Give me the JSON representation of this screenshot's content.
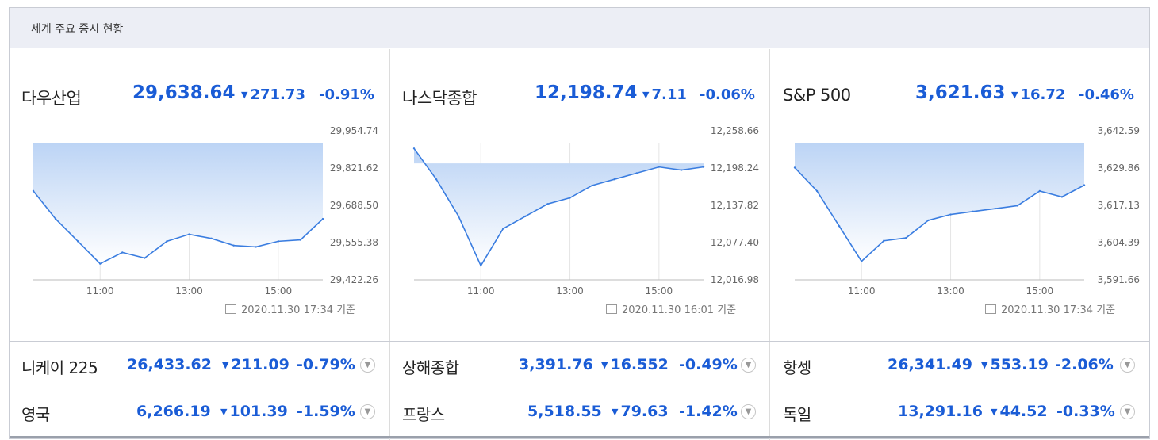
{
  "header": {
    "title": "세계 주요 증시 현황"
  },
  "panels": [
    {
      "name": "다우산업",
      "value": "29,638.64",
      "change": "271.73",
      "percent": "-0.91%",
      "yticks": [
        "29,954.74",
        "29,821.62",
        "29,688.50",
        "29,555.38",
        "29,422.26"
      ],
      "xticks": [
        "11:00",
        "13:00",
        "15:00"
      ],
      "timestamp": "2020.11.30 17:34 기준"
    },
    {
      "name": "나스닥종합",
      "value": "12,198.74",
      "change": "7.11",
      "percent": "-0.06%",
      "yticks": [
        "12,258.66",
        "12,198.24",
        "12,137.82",
        "12,077.40",
        "12,016.98"
      ],
      "xticks": [
        "11:00",
        "13:00",
        "15:00"
      ],
      "timestamp": "2020.11.30 16:01 기준"
    },
    {
      "name": "S&P 500",
      "value": "3,621.63",
      "change": "16.72",
      "percent": "-0.46%",
      "yticks": [
        "3,642.59",
        "3,629.86",
        "3,617.13",
        "3,604.39",
        "3,591.66"
      ],
      "xticks": [
        "11:00",
        "13:00",
        "15:00"
      ],
      "timestamp": "2020.11.30 17:34 기준"
    }
  ],
  "rows": [
    [
      {
        "name": "니케이 225",
        "value": "26,433.62",
        "change": "211.09",
        "percent": "-0.79%"
      },
      {
        "name": "상해종합",
        "value": "3,391.76",
        "change": "16.552",
        "percent": "-0.49%"
      },
      {
        "name": "항셍",
        "value": "26,341.49",
        "change": "553.19",
        "percent": "-2.06%"
      }
    ],
    [
      {
        "name": "영국",
        "value": "6,266.19",
        "change": "101.39",
        "percent": "-1.59%"
      },
      {
        "name": "프랑스",
        "value": "5,518.55",
        "change": "79.63",
        "percent": "-1.42%"
      },
      {
        "name": "독일",
        "value": "13,291.16",
        "change": "44.52",
        "percent": "-0.33%"
      }
    ]
  ],
  "colors": {
    "accent": "#1a5cd6",
    "line": "#3a7de0",
    "up_line": "#e8212d",
    "fill_top": "#bcd4f5",
    "fill_bottom": "#ffffff"
  },
  "icons": {
    "down": "down-triangle-icon",
    "timestamp": "calendar-icon",
    "expand": "chevron-down-icon"
  },
  "chart_data": [
    {
      "type": "area",
      "title": "다우산업",
      "x": [
        "09:30",
        "10:00",
        "10:30",
        "11:00",
        "11:30",
        "12:00",
        "12:30",
        "13:00",
        "13:30",
        "14:00",
        "14:30",
        "15:00",
        "15:30",
        "16:00"
      ],
      "y": [
        29740,
        29640,
        29560,
        29480,
        29520,
        29500,
        29560,
        29585,
        29570,
        29545,
        29540,
        29560,
        29565,
        29640
      ],
      "ylim": [
        29422.26,
        29954.74
      ],
      "prev_close": 29910.37,
      "yticks": [
        "29,954.74",
        "29,821.62",
        "29,688.50",
        "29,555.38",
        "29,422.26"
      ],
      "xticks": [
        "11:00",
        "13:00",
        "15:00"
      ]
    },
    {
      "type": "area",
      "title": "나스닥종합",
      "x": [
        "09:30",
        "10:00",
        "10:30",
        "11:00",
        "11:30",
        "12:00",
        "12:30",
        "13:00",
        "13:30",
        "14:00",
        "14:30",
        "15:00",
        "15:30",
        "16:00"
      ],
      "y": [
        12230,
        12180,
        12120,
        12040,
        12100,
        12120,
        12140,
        12150,
        12170,
        12180,
        12190,
        12200,
        12195,
        12200
      ],
      "ylim": [
        12016.98,
        12258.66
      ],
      "prev_close": 12205.85,
      "yticks": [
        "12,258.66",
        "12,198.24",
        "12,137.82",
        "12,077.40",
        "12,016.98"
      ],
      "xticks": [
        "11:00",
        "13:00",
        "15:00"
      ]
    },
    {
      "type": "area",
      "title": "S&P 500",
      "x": [
        "09:30",
        "10:00",
        "10:30",
        "11:00",
        "11:30",
        "12:00",
        "12:30",
        "13:00",
        "13:30",
        "14:00",
        "14:30",
        "15:00",
        "15:30",
        "16:00"
      ],
      "y": [
        3630,
        3622,
        3610,
        3598,
        3605,
        3606,
        3612,
        3614,
        3615,
        3616,
        3617,
        3622,
        3620,
        3624
      ],
      "ylim": [
        3591.66,
        3642.59
      ],
      "prev_close": 3638.35,
      "yticks": [
        "3,642.59",
        "3,629.86",
        "3,617.13",
        "3,604.39",
        "3,591.66"
      ],
      "xticks": [
        "11:00",
        "13:00",
        "15:00"
      ]
    }
  ]
}
